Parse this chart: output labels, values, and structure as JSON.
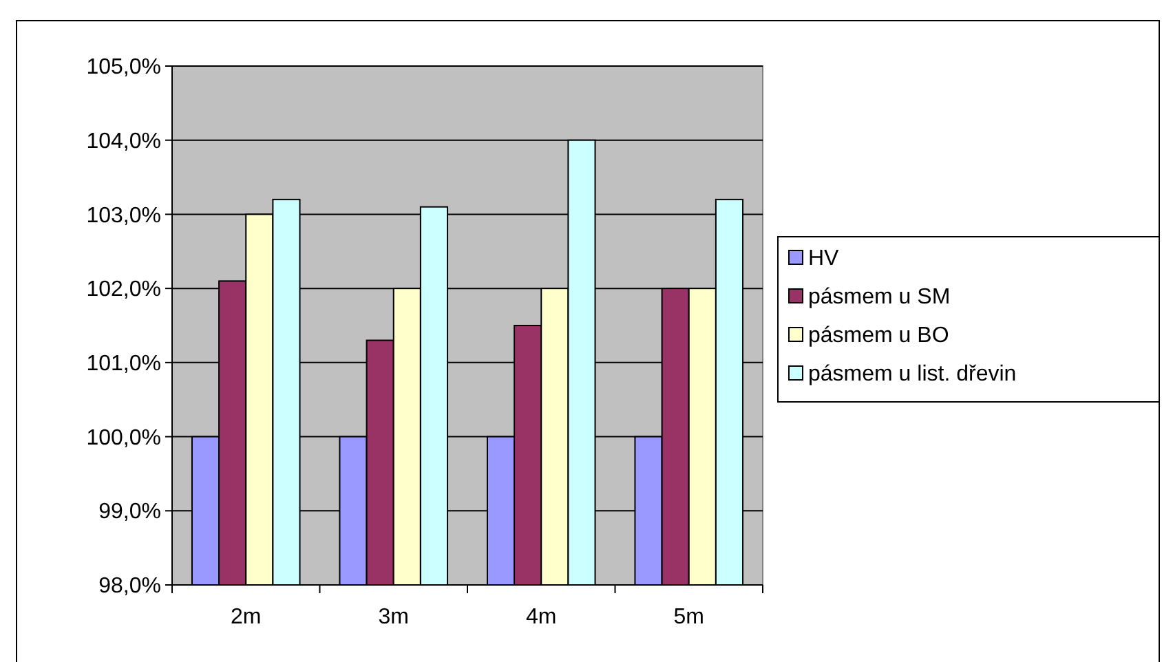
{
  "chart_data": {
    "type": "bar",
    "categories": [
      "2m",
      "3m",
      "4m",
      "5m"
    ],
    "series": [
      {
        "name": "HV",
        "color": "#9999ff",
        "values": [
          100,
          100,
          100,
          100
        ]
      },
      {
        "name": "pásmem u SM",
        "color": "#993366",
        "values": [
          102.1,
          101.3,
          101.5,
          102
        ]
      },
      {
        "name": "pásmem u BO",
        "color": "#ffffcc",
        "values": [
          103,
          102,
          102,
          102
        ]
      },
      {
        "name": "pásmem u list. dřevin",
        "color": "#ccffff",
        "values": [
          103.2,
          103.1,
          104,
          103.2
        ]
      }
    ],
    "ylim": [
      98,
      105
    ],
    "yticks": [
      {
        "value": 98,
        "label": "98,0%"
      },
      {
        "value": 99,
        "label": "99,0%"
      },
      {
        "value": 100,
        "label": "100,0%"
      },
      {
        "value": 101,
        "label": "101,0%"
      },
      {
        "value": 102,
        "label": "102,0%"
      },
      {
        "value": 103,
        "label": "103,0%"
      },
      {
        "value": 104,
        "label": "104,0%"
      },
      {
        "value": 105,
        "label": "105,0%"
      }
    ],
    "grid": "y",
    "legend": "right"
  }
}
